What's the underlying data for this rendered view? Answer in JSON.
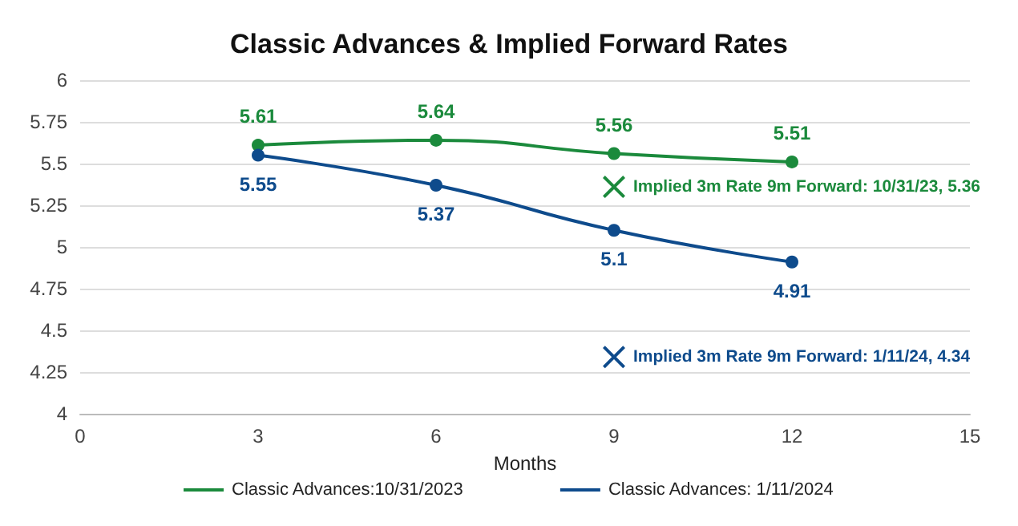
{
  "chart_data": {
    "type": "line",
    "title": "Classic Advances & Implied Forward Rates",
    "xlabel": "Months",
    "x": [
      3,
      6,
      9,
      12
    ],
    "series": [
      {
        "name": "Classic Advances:10/31/2023",
        "color": "#1b8a3c",
        "values": [
          5.61,
          5.64,
          5.56,
          5.51
        ],
        "value_labels": [
          "5.61",
          "5.64",
          "5.56",
          "5.51"
        ],
        "marker": "circle"
      },
      {
        "name": "Classic Advances: 1/11/2024",
        "color": "#0e4b8c",
        "values": [
          5.55,
          5.37,
          5.1,
          4.91
        ],
        "value_labels": [
          "5.55",
          "5.37",
          "5.1",
          "4.91"
        ],
        "marker": "circle"
      },
      {
        "type": "scatter",
        "color": "#1b8a3c",
        "x": [
          9
        ],
        "values": [
          5.36
        ],
        "marker": "cross"
      },
      {
        "type": "scatter",
        "color": "#0e4b8c",
        "x": [
          9
        ],
        "values": [
          4.34
        ],
        "marker": "cross"
      }
    ],
    "annotations": [
      {
        "text": "Implied 3m Rate 9m Forward: 10/31/23, 5.36",
        "x": 9,
        "y": 5.36
      },
      {
        "text": "Implied 3m Rate 9m Forward: 1/11/24, 4.34",
        "x": 9,
        "y": 4.34
      }
    ],
    "xlim": [
      0,
      15
    ],
    "xticks": [
      0,
      3,
      6,
      9,
      12,
      15
    ],
    "ylim": [
      4,
      6
    ],
    "yticks": [
      4,
      4.25,
      4.5,
      4.75,
      5,
      5.25,
      5.5,
      5.75,
      6
    ],
    "grid": "y",
    "legend": "bottom",
    "line_style": "solid"
  }
}
